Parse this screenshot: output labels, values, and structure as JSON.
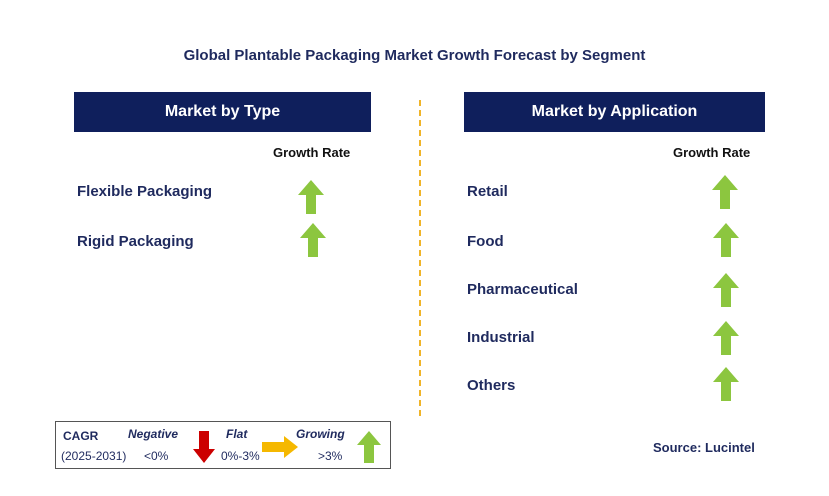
{
  "title": "Global Plantable Packaging Market Growth Forecast by Segment",
  "left_panel": {
    "header": "Market by Type",
    "column_label": "Growth Rate",
    "rows": [
      {
        "label": "Flexible Packaging",
        "trend": "growing"
      },
      {
        "label": "Rigid Packaging",
        "trend": "growing"
      }
    ]
  },
  "right_panel": {
    "header": "Market by Application",
    "column_label": "Growth Rate",
    "rows": [
      {
        "label": "Retail",
        "trend": "growing"
      },
      {
        "label": "Food",
        "trend": "growing"
      },
      {
        "label": "Pharmaceutical",
        "trend": "growing"
      },
      {
        "label": "Industrial",
        "trend": "growing"
      },
      {
        "label": "Others",
        "trend": "growing"
      }
    ]
  },
  "legend": {
    "cagr_label": "CAGR",
    "period": "(2025-2031)",
    "negative_label": "Negative",
    "negative_range": "<0%",
    "flat_label": "Flat",
    "flat_range": "0%-3%",
    "growing_label": "Growing",
    "growing_range": ">3%"
  },
  "source": "Source: Lucintel",
  "colors": {
    "header_bg": "#0f1f5c",
    "growing": "#8cc63f",
    "flat": "#f5b800",
    "negative": "#cc0000",
    "divider": "#f0b428"
  },
  "icons": {
    "growing": "up-arrow-icon",
    "flat": "right-arrow-icon",
    "negative": "down-arrow-icon"
  }
}
